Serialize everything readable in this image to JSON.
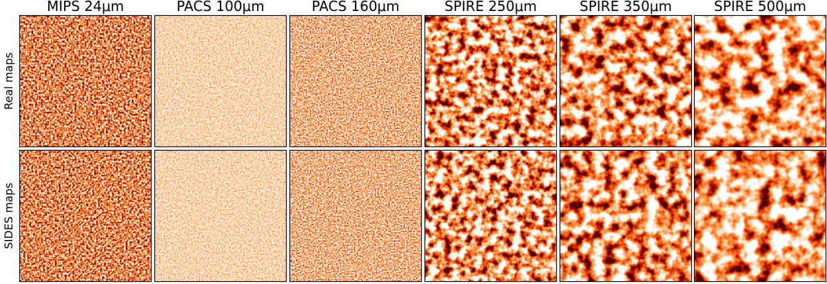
{
  "column_titles": [
    "MIPS 24μm",
    "PACS 100μm",
    "PACS 160μm",
    "SPIRE 250μm",
    "SPIRE 350μm",
    "SPIRE 500μm"
  ],
  "row_labels": [
    "Real maps",
    "SIDES maps"
  ]
}
